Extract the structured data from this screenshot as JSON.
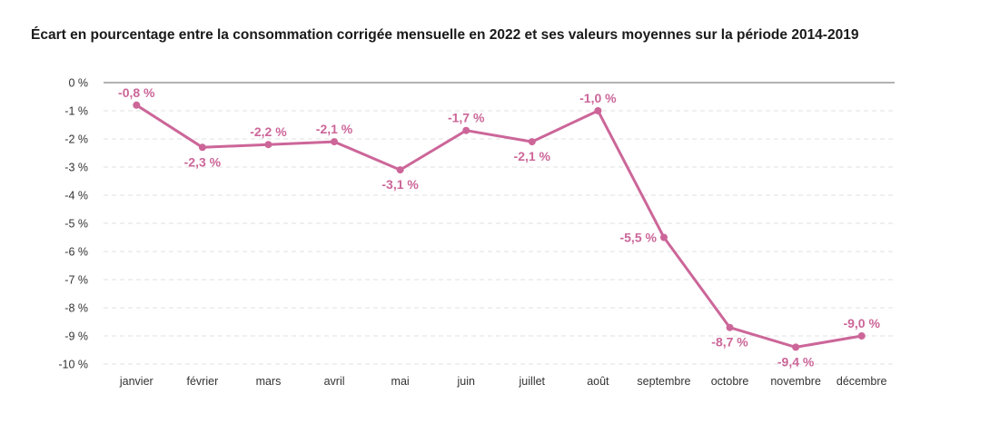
{
  "chart_data": {
    "type": "line",
    "title": "Écart en pourcentage entre la consommation corrigée mensuelle en 2022 et ses valeurs moyennes sur la période 2014-2019",
    "xlabel": "",
    "ylabel": "",
    "categories": [
      "janvier",
      "février",
      "mars",
      "avril",
      "mai",
      "juin",
      "juillet",
      "août",
      "septembre",
      "octobre",
      "novembre",
      "décembre"
    ],
    "series": [
      {
        "values": [
          -0.8,
          -2.3,
          -2.2,
          -2.1,
          -3.1,
          -1.7,
          -2.1,
          -1.0,
          -5.5,
          -8.7,
          -9.4,
          -9.0
        ],
        "data_labels": [
          "-0,8 %",
          "-2,3 %",
          "-2,2 %",
          "-2,1 %",
          "-3,1 %",
          "-1,7 %",
          "-2,1 %",
          "-1,0 %",
          "-5,5 %",
          "-8,7 %",
          "-9,4 %",
          "-9,0 %"
        ],
        "label_positions": [
          "above",
          "below",
          "above",
          "above",
          "below",
          "above",
          "below",
          "above",
          "left",
          "below",
          "below",
          "above"
        ],
        "color": "#cc6699"
      }
    ],
    "ylim": [
      -10,
      0
    ],
    "yticks": [
      0,
      -1,
      -2,
      -3,
      -4,
      -5,
      -6,
      -7,
      -8,
      -9,
      -10
    ],
    "ytick_labels": [
      "0 %",
      "-1 %",
      "-2 %",
      "-3 %",
      "-4 %",
      "-5 %",
      "-6 %",
      "-7 %",
      "-8 %",
      "-9 %",
      "-10 %"
    ],
    "grid": true,
    "legend": false
  }
}
